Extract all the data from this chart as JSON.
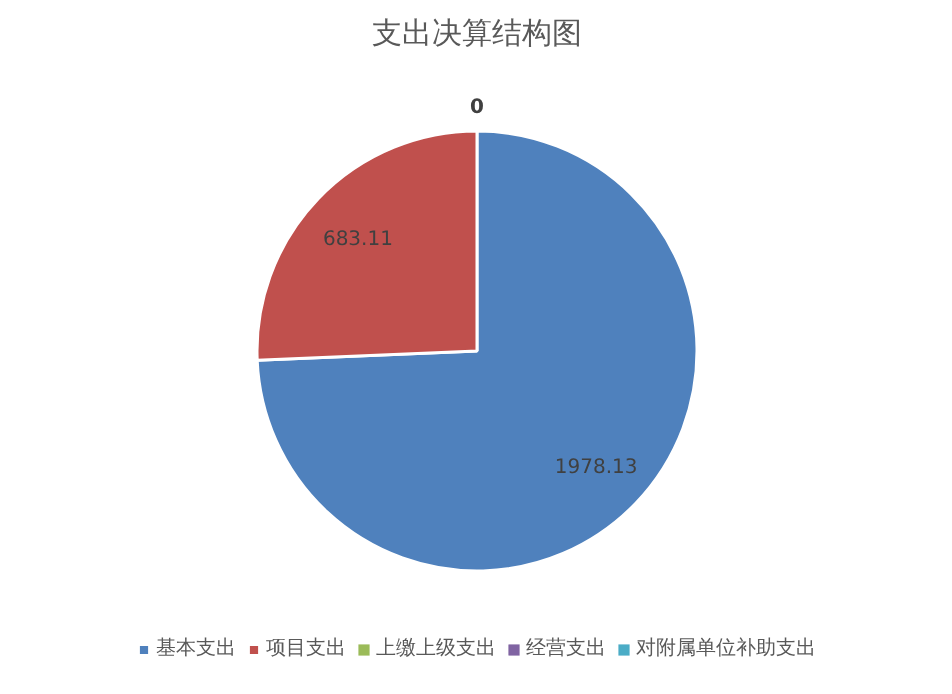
{
  "chart_data": {
    "type": "pie",
    "title": "支出决算结构图",
    "categories": [
      "基本支出",
      "项目支出",
      "上缴上级支出",
      "经营支出",
      "对附属单位补助支出"
    ],
    "values": [
      1978.13,
      683.11,
      0,
      0,
      0
    ],
    "colors": [
      "#4f81bd",
      "#c0504d",
      "#9bbb59",
      "#8064a2",
      "#4bacc6"
    ],
    "value_labels": [
      "1978.13",
      "683.11",
      "0",
      null,
      null
    ],
    "legend": "bottom"
  }
}
